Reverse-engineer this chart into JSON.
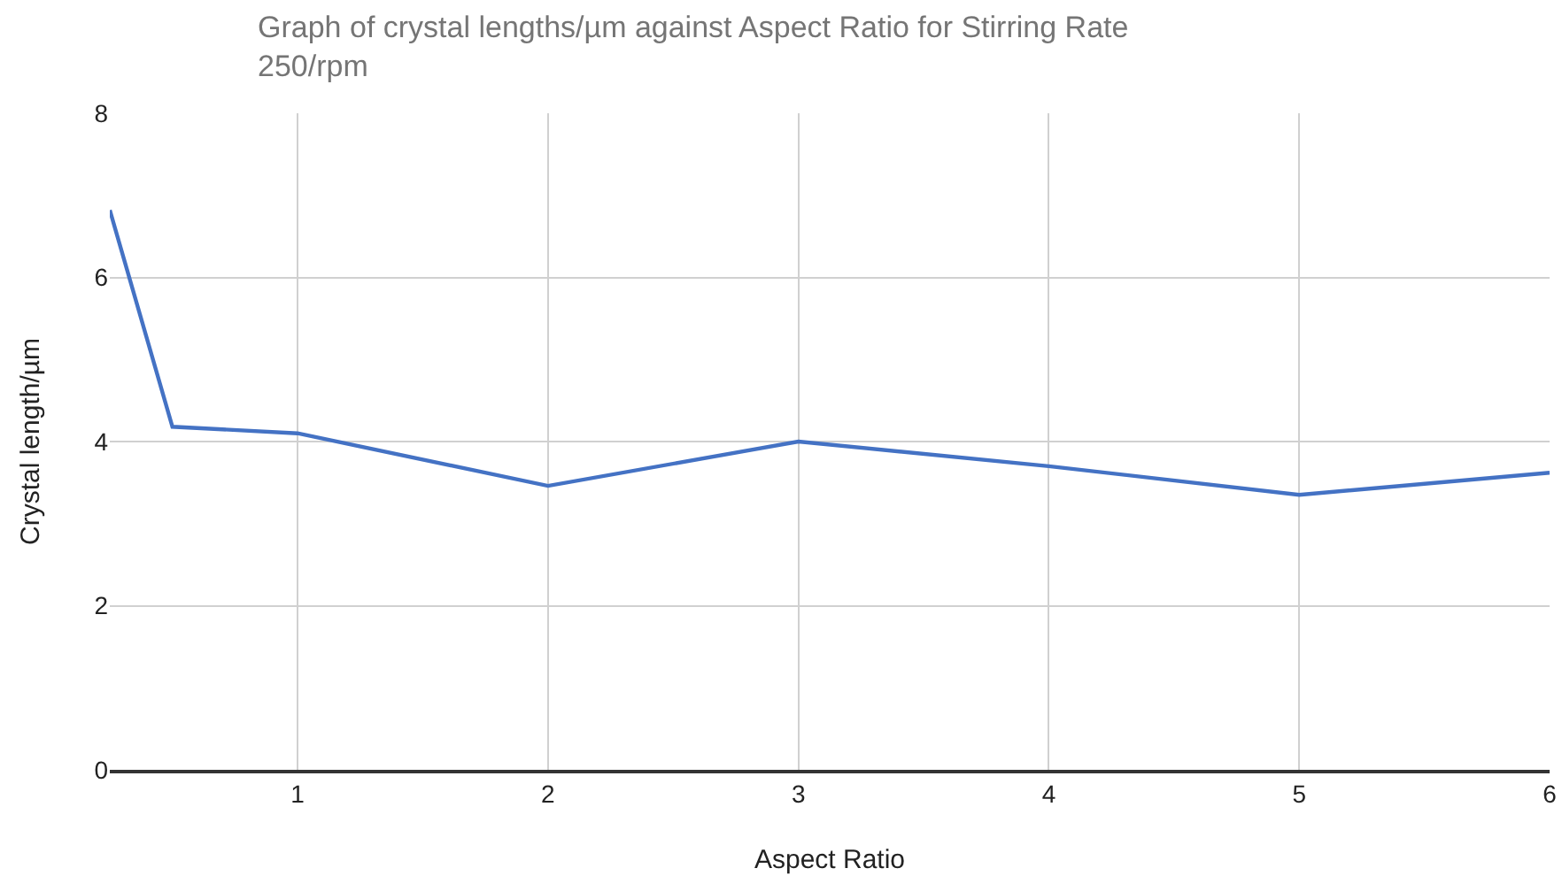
{
  "chart_data": {
    "type": "line",
    "title": "Graph of crystal lengths/µm against Aspect Ratio for Stirring Rate 250/rpm",
    "xlabel": "Aspect Ratio",
    "ylabel": "Crystal length/µm",
    "x": [
      0.25,
      0.5,
      1,
      2,
      3,
      4,
      5,
      6
    ],
    "series": [
      {
        "color": "#4472c4",
        "values": [
          6.82,
          4.18,
          4.1,
          3.46,
          4.0,
          3.7,
          3.35,
          3.62
        ]
      }
    ],
    "xlim": [
      0.25,
      6
    ],
    "xticks": [
      1,
      2,
      3,
      4,
      5,
      6
    ],
    "ylim": [
      0,
      8
    ],
    "yticks": [
      0,
      2,
      4,
      6,
      8
    ],
    "grid": true,
    "marker": "none",
    "line_style": "solid"
  }
}
